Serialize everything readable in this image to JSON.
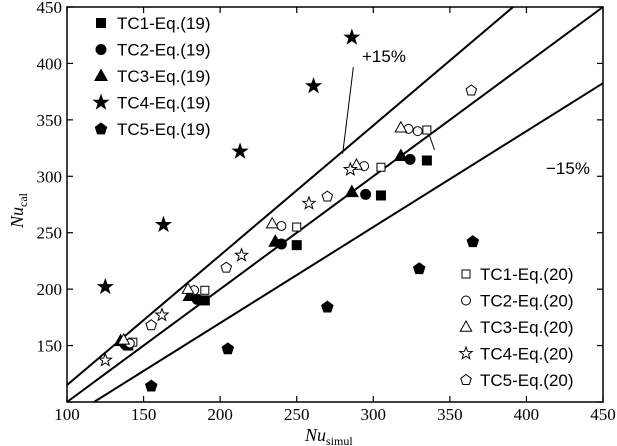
{
  "chart_data": {
    "type": "scatter",
    "xlabel": {
      "main": "Nu",
      "sub": "simul"
    },
    "ylabel": {
      "main": "Nu",
      "sub": "cal"
    },
    "xlim": [
      100,
      450
    ],
    "ylim": [
      100,
      450
    ],
    "xticks": [
      100,
      150,
      200,
      250,
      300,
      350,
      400,
      450
    ],
    "yticks": [
      100,
      150,
      200,
      250,
      300,
      350,
      400,
      450
    ],
    "grid": false,
    "lines": [
      {
        "name": "y=x",
        "slope": 1.0,
        "label": ""
      },
      {
        "name": "plus15",
        "slope": 1.15,
        "label": "+15%"
      },
      {
        "name": "minus15",
        "slope": 0.85,
        "label": "−15%"
      }
    ],
    "series": [
      {
        "name": "TC1-Eq.(19)",
        "marker": "square",
        "filled": true,
        "points": [
          [
            140,
            150
          ],
          [
            190,
            190
          ],
          [
            250,
            239
          ],
          [
            305,
            283
          ],
          [
            335,
            314
          ]
        ]
      },
      {
        "name": "TC2-Eq.(19)",
        "marker": "circle",
        "filled": true,
        "points": [
          [
            138,
            151
          ],
          [
            185,
            191
          ],
          [
            240,
            240
          ],
          [
            295,
            284
          ],
          [
            324,
            315
          ]
        ]
      },
      {
        "name": "TC3-Eq.(19)",
        "marker": "triangle",
        "filled": true,
        "points": [
          [
            135,
            154
          ],
          [
            180,
            194
          ],
          [
            236,
            242
          ],
          [
            286,
            286
          ],
          [
            318,
            318
          ]
        ]
      },
      {
        "name": "TC4-Eq.(19)",
        "marker": "star",
        "filled": true,
        "points": [
          [
            125,
            202
          ],
          [
            163,
            257
          ],
          [
            213,
            322
          ],
          [
            261,
            380
          ],
          [
            286,
            423
          ]
        ]
      },
      {
        "name": "TC5-Eq.(19)",
        "marker": "pentagon",
        "filled": true,
        "points": [
          [
            155,
            114
          ],
          [
            205,
            147
          ],
          [
            270,
            184
          ],
          [
            330,
            218
          ],
          [
            365,
            242
          ]
        ]
      },
      {
        "name": "TC1-Eq.(20)",
        "marker": "square",
        "filled": false,
        "points": [
          [
            143,
            153
          ],
          [
            190,
            199
          ],
          [
            250,
            255
          ],
          [
            305,
            308
          ],
          [
            335,
            341
          ]
        ]
      },
      {
        "name": "TC2-Eq.(20)",
        "marker": "circle",
        "filled": false,
        "points": [
          [
            141,
            152
          ],
          [
            183,
            199
          ],
          [
            240,
            256
          ],
          [
            294,
            309
          ],
          [
            323,
            342
          ],
          [
            329,
            340
          ]
        ]
      },
      {
        "name": "TC3-Eq.(20)",
        "marker": "triangle",
        "filled": false,
        "points": [
          [
            137,
            155
          ],
          [
            179,
            200
          ],
          [
            234,
            258
          ],
          [
            289,
            310
          ],
          [
            318,
            343
          ]
        ]
      },
      {
        "name": "TC4-Eq.(20)",
        "marker": "star",
        "filled": false,
        "points": [
          [
            125,
            137
          ],
          [
            162,
            177
          ],
          [
            214,
            230
          ],
          [
            258,
            276
          ],
          [
            285,
            306
          ]
        ]
      },
      {
        "name": "TC5-Eq.(20)",
        "marker": "pentagon",
        "filled": false,
        "points": [
          [
            155,
            168
          ],
          [
            204,
            219
          ],
          [
            270,
            282
          ],
          [
            364,
            376
          ]
        ]
      }
    ]
  }
}
